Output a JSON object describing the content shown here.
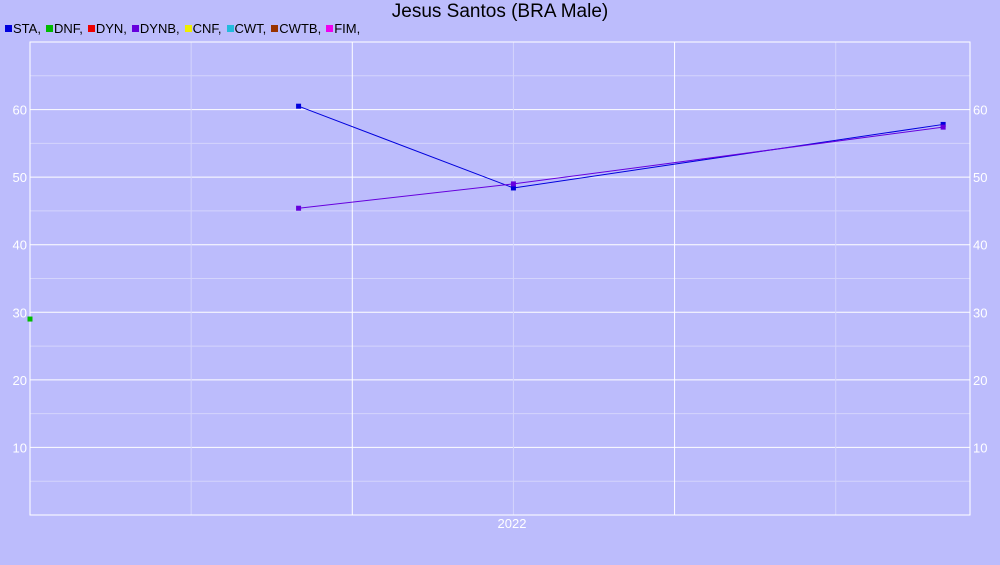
{
  "chart_data": {
    "type": "line",
    "title": "Jesus Santos (BRA Male)",
    "xlabel": "",
    "ylabel": "",
    "x_tick_labels": [
      "2022"
    ],
    "y_ticks": [
      10,
      20,
      30,
      40,
      50,
      60
    ],
    "ylim": [
      0,
      70
    ],
    "xlim": [
      "2021-01",
      "2023-12"
    ],
    "grid": true,
    "legend_placement": "top-left",
    "series": [
      {
        "name": "STA",
        "color": "#0000dd",
        "points": [
          {
            "x": "2021-11",
            "y": 60.5
          },
          {
            "x": "2022-07",
            "y": 48.4
          },
          {
            "x": "2023-11",
            "y": 57.8
          }
        ]
      },
      {
        "name": "DNF",
        "color": "#00bb00",
        "points": [
          {
            "x": "2021-01",
            "y": 29
          }
        ]
      },
      {
        "name": "DYN",
        "color": "#ee0000",
        "points": []
      },
      {
        "name": "DYNB",
        "color": "#6600dd",
        "points": [
          {
            "x": "2021-11",
            "y": 45.4
          },
          {
            "x": "2022-07",
            "y": 49
          },
          {
            "x": "2023-11",
            "y": 57.4
          }
        ]
      },
      {
        "name": "CNF",
        "color": "#eeee00",
        "points": []
      },
      {
        "name": "CWT",
        "color": "#22bbdd",
        "points": []
      },
      {
        "name": "CWTB",
        "color": "#993300",
        "points": []
      },
      {
        "name": "FIM",
        "color": "#ee00ee",
        "points": []
      }
    ]
  }
}
